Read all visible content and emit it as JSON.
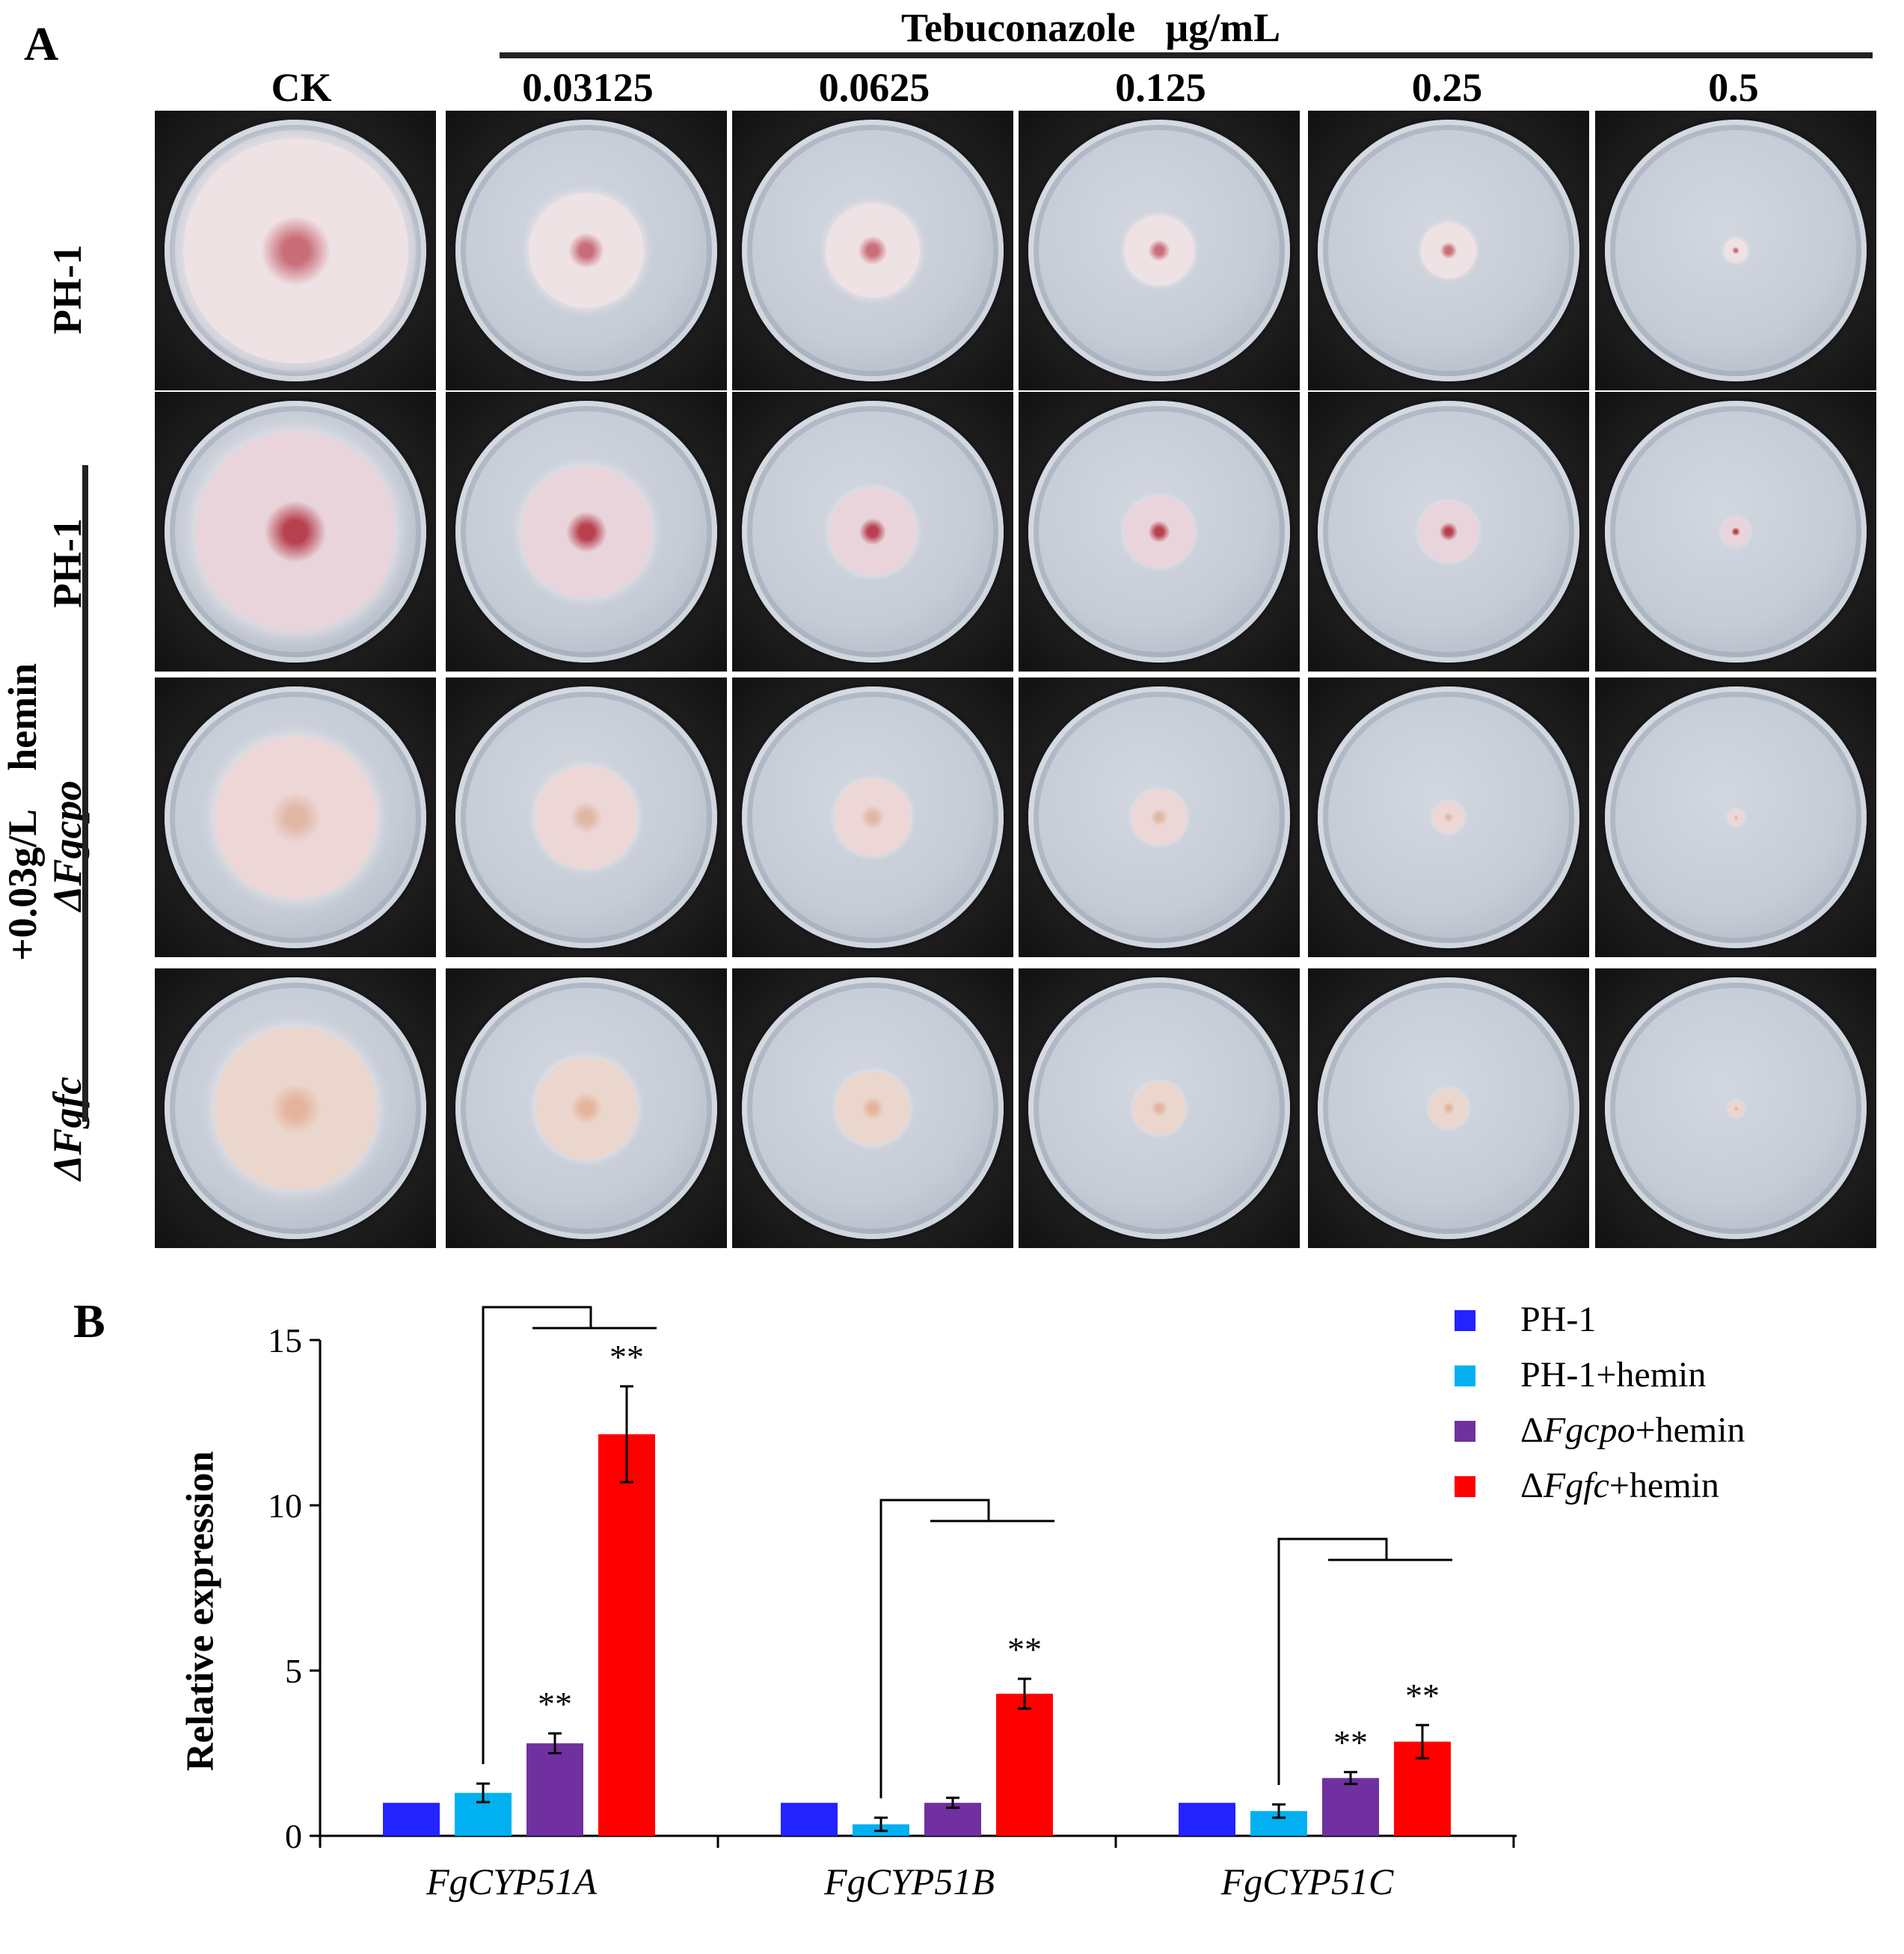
{
  "panel_a": {
    "label": "A",
    "drug_title": "Tebuconazole   μg/mL",
    "columns": [
      "CK",
      "0.03125",
      "0.0625",
      "0.125",
      "0.25",
      "0.5"
    ],
    "row_labels": [
      "PH-1",
      "PH-1",
      "ΔFgcpo",
      "ΔFgfc"
    ],
    "hemin_label": "+0.03g/L    hemin",
    "plate_rows": [
      {
        "strain": "PH-1",
        "colony_fraction": [
          0.86,
          0.44,
          0.36,
          0.27,
          0.21,
          0.09
        ],
        "tint": "#efe2e4",
        "core": "#c96d78"
      },
      {
        "strain": "PH-1+hemin",
        "colony_fraction": [
          0.76,
          0.5,
          0.33,
          0.27,
          0.23,
          0.11
        ],
        "tint": "#e8d4da",
        "core": "#b8404f"
      },
      {
        "strain": "ΔFgcpo+hemin",
        "colony_fraction": [
          0.62,
          0.39,
          0.29,
          0.21,
          0.12,
          0.06
        ],
        "tint": "#ecd6d6",
        "core": "#e0b7a5"
      },
      {
        "strain": "ΔFgfc+hemin",
        "colony_fraction": [
          0.62,
          0.39,
          0.28,
          0.2,
          0.15,
          0.06
        ],
        "tint": "#ead6cc",
        "core": "#e6b49c"
      }
    ]
  },
  "panel_b": {
    "label": "B"
  },
  "chart_data": {
    "type": "bar",
    "title": "",
    "xlabel": "",
    "ylabel": "Relative expression",
    "ylim": [
      0,
      15
    ],
    "yticks": [
      0,
      5,
      10,
      15
    ],
    "categories": [
      "FgCYP51A",
      "FgCYP51B",
      "FgCYP51C"
    ],
    "series": [
      {
        "name": "PH-1",
        "color": "#2323ff",
        "values": [
          1.0,
          1.0,
          1.0
        ],
        "errors": [
          0,
          0,
          0
        ],
        "sig": [
          "",
          "",
          ""
        ]
      },
      {
        "name": "PH-1+hemin",
        "color": "#00b0f0",
        "values": [
          1.3,
          0.35,
          0.75
        ],
        "errors": [
          0.28,
          0.2,
          0.2
        ],
        "sig": [
          "",
          "",
          ""
        ]
      },
      {
        "name": "ΔFgcpo+hemin",
        "color": "#7030a0",
        "values": [
          2.8,
          1.0,
          1.75
        ],
        "errors": [
          0.3,
          0.15,
          0.18
        ],
        "sig": [
          "**",
          "",
          "**"
        ]
      },
      {
        "name": "ΔFgfc+hemin",
        "color": "#ff0000",
        "values": [
          12.15,
          4.3,
          2.85
        ],
        "errors": [
          1.45,
          0.45,
          0.5
        ],
        "sig": [
          "**",
          "**",
          "**"
        ]
      }
    ],
    "legend": {
      "placement": "top-right",
      "entries": [
        "PH-1",
        "PH-1+hemin",
        "ΔFgcpo+hemin",
        "ΔFgfc+hemin"
      ]
    }
  }
}
